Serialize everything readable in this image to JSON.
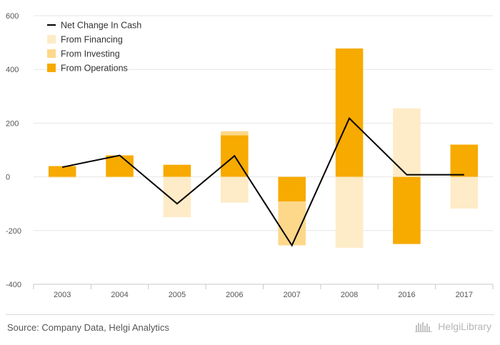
{
  "chart_data": {
    "type": "bar",
    "stacked": true,
    "categories": [
      "2003",
      "2004",
      "2005",
      "2006",
      "2007",
      "2008",
      "2016",
      "2017"
    ],
    "series": [
      {
        "name": "From Operations",
        "kind": "bar",
        "color": "#F7AA00",
        "values": [
          40,
          80,
          45,
          155,
          -92,
          478,
          -250,
          120
        ]
      },
      {
        "name": "From Investing",
        "kind": "bar",
        "color": "#FDD88A",
        "values": [
          0,
          0,
          0,
          15,
          -163,
          0,
          0,
          0
        ]
      },
      {
        "name": "From Financing",
        "kind": "bar",
        "color": "#FEEBC7",
        "values": [
          -4,
          -2,
          -150,
          -96,
          0,
          -264,
          255,
          -118
        ]
      },
      {
        "name": "Net Change In Cash",
        "kind": "line",
        "color": "#000000",
        "values": [
          36,
          80,
          -100,
          78,
          -255,
          218,
          8,
          8
        ]
      }
    ],
    "ylim": [
      -400,
      600
    ],
    "yticks": [
      -400,
      -200,
      0,
      200,
      400,
      600
    ],
    "ytick_labels": [
      "-400",
      "-200",
      "0",
      "200",
      "400",
      "600"
    ],
    "legend_position": "top-left",
    "legend_order": [
      "Net Change In Cash",
      "From Financing",
      "From Investing",
      "From Operations"
    ],
    "grid": true
  },
  "footer": {
    "source": "Source: Company Data, Helgi Analytics",
    "brand": "HelgiLibrary"
  }
}
